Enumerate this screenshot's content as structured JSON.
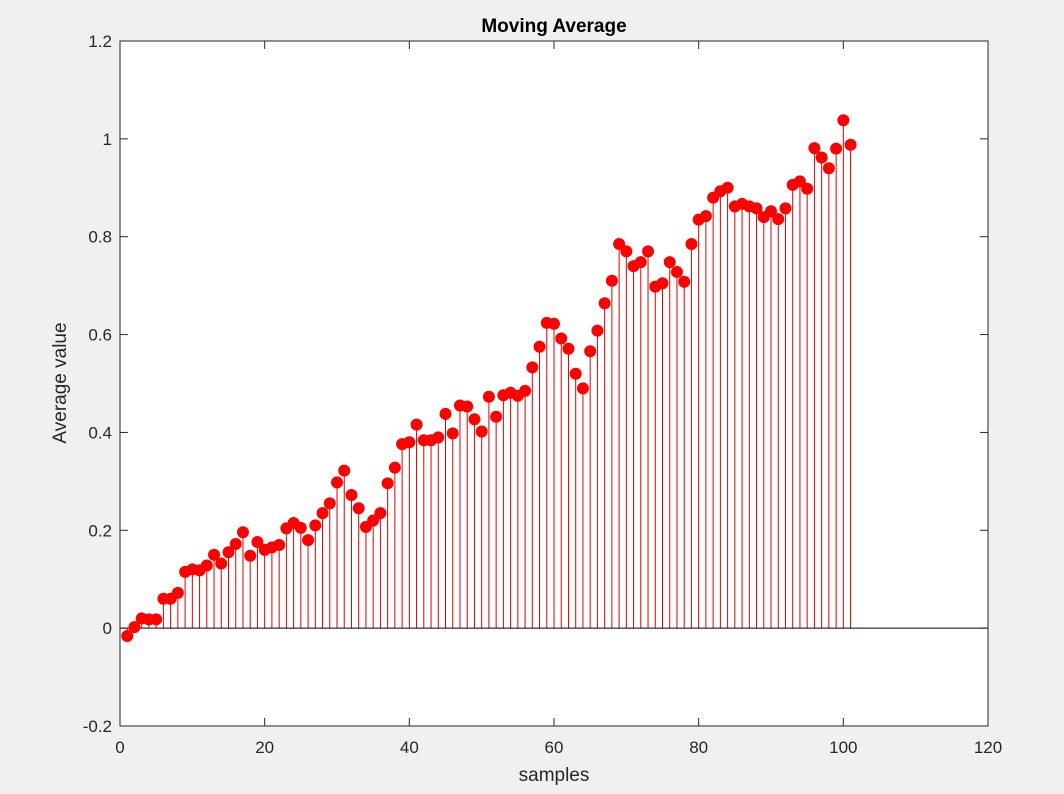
{
  "chart_data": {
    "type": "stem",
    "title": "Moving Average",
    "xlabel": "samples",
    "ylabel": "Average value",
    "xlim": [
      0,
      120
    ],
    "ylim": [
      -0.2,
      1.2
    ],
    "xticks": [
      "0",
      "20",
      "40",
      "60",
      "80",
      "100",
      "120"
    ],
    "yticks": [
      "-0.2",
      "0",
      "0.2",
      "0.4",
      "0.6",
      "0.8",
      "1",
      "1.2"
    ],
    "grid": false,
    "legend": "none",
    "baseline": 0,
    "colors": {
      "stem": "#e00000",
      "marker": "#ff0000",
      "baseline": "#000000",
      "axes_bg": "#ffffff",
      "figure_bg": "#f0f0f0"
    },
    "x": [
      1,
      2,
      3,
      4,
      5,
      6,
      7,
      8,
      9,
      10,
      11,
      12,
      13,
      14,
      15,
      16,
      17,
      18,
      19,
      20,
      21,
      22,
      23,
      24,
      25,
      26,
      27,
      28,
      29,
      30,
      31,
      32,
      33,
      34,
      35,
      36,
      37,
      38,
      39,
      40,
      41,
      42,
      43,
      44,
      45,
      46,
      47,
      48,
      49,
      50,
      51,
      52,
      53,
      54,
      55,
      56,
      57,
      58,
      59,
      60,
      61,
      62,
      63,
      64,
      65,
      66,
      67,
      68,
      69,
      70,
      71,
      72,
      73,
      74,
      75,
      76,
      77,
      78,
      79,
      80,
      81,
      82,
      83,
      84,
      85,
      86,
      87,
      88,
      89,
      90,
      91,
      92,
      93,
      94,
      95,
      96,
      97,
      98,
      99,
      100,
      101
    ],
    "values": [
      -0.016,
      0.002,
      0.02,
      0.018,
      0.018,
      0.06,
      0.06,
      0.072,
      0.115,
      0.12,
      0.118,
      0.128,
      0.15,
      0.132,
      0.155,
      0.172,
      0.196,
      0.148,
      0.176,
      0.16,
      0.165,
      0.17,
      0.204,
      0.215,
      0.205,
      0.18,
      0.21,
      0.235,
      0.255,
      0.298,
      0.322,
      0.272,
      0.245,
      0.207,
      0.22,
      0.235,
      0.296,
      0.328,
      0.376,
      0.38,
      0.416,
      0.384,
      0.384,
      0.39,
      0.438,
      0.398,
      0.455,
      0.453,
      0.427,
      0.402,
      0.473,
      0.432,
      0.476,
      0.481,
      0.475,
      0.485,
      0.533,
      0.575,
      0.624,
      0.622,
      0.592,
      0.571,
      0.52,
      0.49,
      0.566,
      0.608,
      0.664,
      0.71,
      0.785,
      0.77,
      0.74,
      0.748,
      0.77,
      0.698,
      0.705,
      0.748,
      0.728,
      0.708,
      0.785,
      0.835,
      0.842,
      0.88,
      0.893,
      0.9,
      0.862,
      0.867,
      0.862,
      0.858,
      0.84,
      0.852,
      0.836,
      0.858,
      0.906,
      0.913,
      0.898,
      0.981,
      0.962,
      0.94,
      0.98,
      1.038,
      0.988
    ]
  }
}
